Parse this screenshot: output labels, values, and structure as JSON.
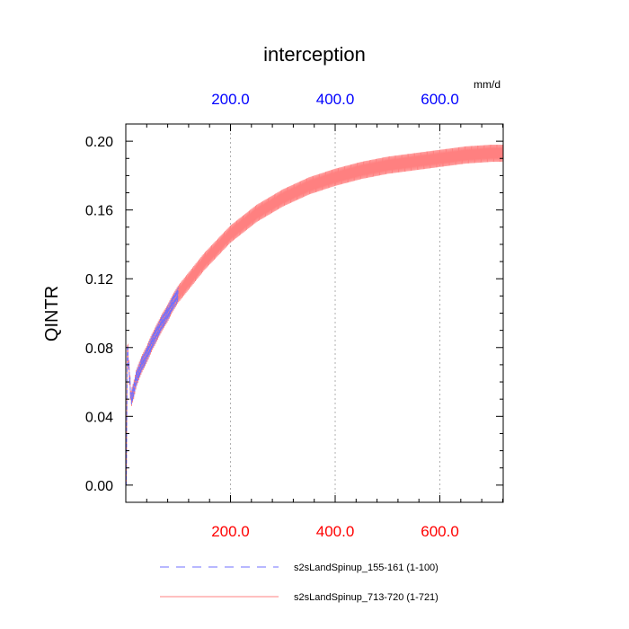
{
  "chart_data": {
    "type": "line",
    "title": "interception",
    "units_label": "mm/d",
    "ylabel": "QINTR",
    "xlabel": "",
    "xlim": [
      0,
      721
    ],
    "ylim": [
      -0.01,
      0.21
    ],
    "x_ticks": [
      200,
      400,
      600
    ],
    "x_tick_labels": [
      "200.0",
      "400.0",
      "600.0"
    ],
    "y_ticks": [
      0.0,
      0.04,
      0.08,
      0.12,
      0.16,
      0.2
    ],
    "y_tick_labels": [
      "0.00",
      "0.04",
      "0.08",
      "0.12",
      "0.16",
      "0.20"
    ],
    "top_axis_color": "#0000ff",
    "bottom_axis_color": "#ff0000",
    "grid": "vertical dotted at major x ticks",
    "legend_placement": "bottom",
    "series": [
      {
        "name": "s2sLandSpinup_155-161 (1-100)",
        "color": "#7070ff",
        "style": "dashed",
        "x_range": [
          1,
          100
        ],
        "x": [
          1,
          3,
          10,
          15,
          20,
          30,
          40,
          50,
          60,
          70,
          80,
          90,
          100
        ],
        "y": [
          0.0,
          0.081,
          0.05,
          0.055,
          0.062,
          0.07,
          0.076,
          0.083,
          0.089,
          0.095,
          0.1,
          0.106,
          0.111
        ],
        "oscillation_amplitude": 0.004
      },
      {
        "name": "s2sLandSpinup_713-720 (1-721)",
        "color": "#ff8080",
        "style": "solid",
        "x_range": [
          1,
          721
        ],
        "x": [
          1,
          3,
          10,
          15,
          20,
          30,
          40,
          50,
          60,
          70,
          80,
          90,
          100,
          150,
          200,
          250,
          300,
          350,
          400,
          450,
          500,
          550,
          600,
          650,
          700,
          721
        ],
        "y": [
          0.0,
          0.081,
          0.05,
          0.055,
          0.062,
          0.07,
          0.076,
          0.083,
          0.089,
          0.095,
          0.1,
          0.106,
          0.111,
          0.13,
          0.146,
          0.158,
          0.167,
          0.174,
          0.179,
          0.183,
          0.186,
          0.188,
          0.19,
          0.192,
          0.193,
          0.193
        ],
        "oscillation_amplitude": 0.005
      }
    ]
  }
}
